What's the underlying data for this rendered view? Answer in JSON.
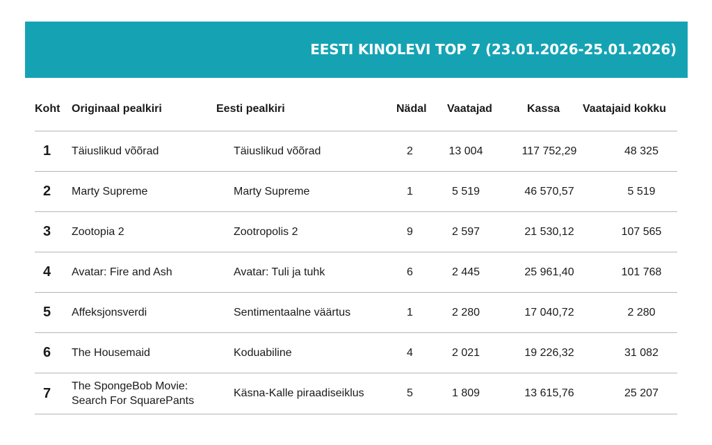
{
  "title": "EESTI KINOLEVI TOP 7 (23.01.2026-25.01.2026)",
  "headers": {
    "rank": "Koht",
    "original_title": "Originaal pealkiri",
    "estonian_title": "Eesti pealkiri",
    "week": "Nädal",
    "viewers": "Vaatajad",
    "box_office": "Kassa",
    "total_viewers": "Vaatajaid kokku"
  },
  "rows": [
    {
      "rank": "1",
      "original_title": "Täiuslikud võõrad",
      "estonian_title": "Täiuslikud võõrad",
      "week": "2",
      "viewers": "13 004",
      "box_office": "117 752,29",
      "total_viewers": "48 325"
    },
    {
      "rank": "2",
      "original_title": "Marty Supreme",
      "estonian_title": "Marty Supreme",
      "week": "1",
      "viewers": "5 519",
      "box_office": "46 570,57",
      "total_viewers": "5 519"
    },
    {
      "rank": "3",
      "original_title": "Zootopia 2",
      "estonian_title": "Zootropolis 2",
      "week": "9",
      "viewers": "2 597",
      "box_office": "21 530,12",
      "total_viewers": "107 565"
    },
    {
      "rank": "4",
      "original_title": "Avatar: Fire and Ash",
      "estonian_title": "Avatar: Tuli ja tuhk",
      "week": "6",
      "viewers": "2 445",
      "box_office": "25 961,40",
      "total_viewers": "101 768"
    },
    {
      "rank": "5",
      "original_title": "Affeksjonsverdi",
      "estonian_title": "Sentimentaalne väärtus",
      "week": "1",
      "viewers": "2 280",
      "box_office": "17 040,72",
      "total_viewers": "2 280"
    },
    {
      "rank": "6",
      "original_title": "The Housemaid",
      "estonian_title": "Koduabiline",
      "week": "4",
      "viewers": "2 021",
      "box_office": "19 226,32",
      "total_viewers": "31 082"
    },
    {
      "rank": "7",
      "original_title": "The SpongeBob Movie: Search For SquarePants",
      "estonian_title": "Käsna-Kalle piraadiseiklus",
      "week": "5",
      "viewers": "1 809",
      "box_office": "13 615,76",
      "total_viewers": "25 207"
    }
  ],
  "colors": {
    "banner": "#15a3b4",
    "banner_text": "#ffffff",
    "rule": "#b5b5b5"
  }
}
